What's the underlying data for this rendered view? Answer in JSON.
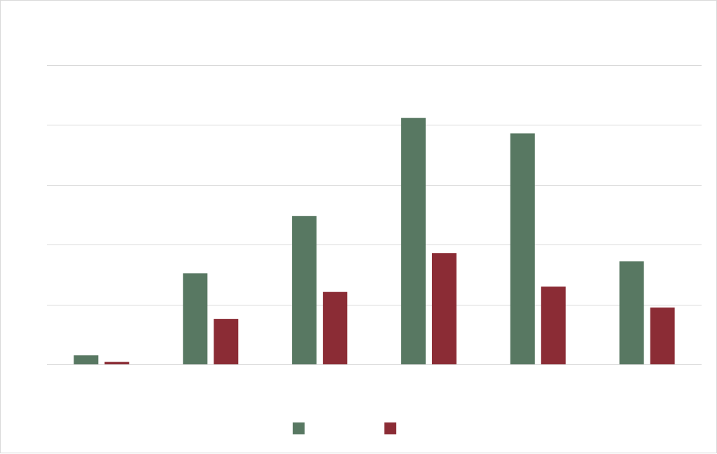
{
  "chart_data": {
    "type": "bar",
    "title": "",
    "xlabel": "",
    "ylabel": "",
    "categories": [
      "",
      "",
      "",
      "",
      "",
      ""
    ],
    "ylim": [
      0,
      5
    ],
    "gridlines": [
      0,
      1,
      2,
      3,
      4,
      5
    ],
    "grid": true,
    "legend_position": "bottom",
    "series": [
      {
        "color": "#587862",
        "values": [
          0.15,
          1.52,
          2.48,
          4.12,
          3.86,
          1.72
        ]
      },
      {
        "color": "#8b2c35",
        "values": [
          0.04,
          0.76,
          1.21,
          1.86,
          1.3,
          0.95
        ]
      }
    ]
  }
}
